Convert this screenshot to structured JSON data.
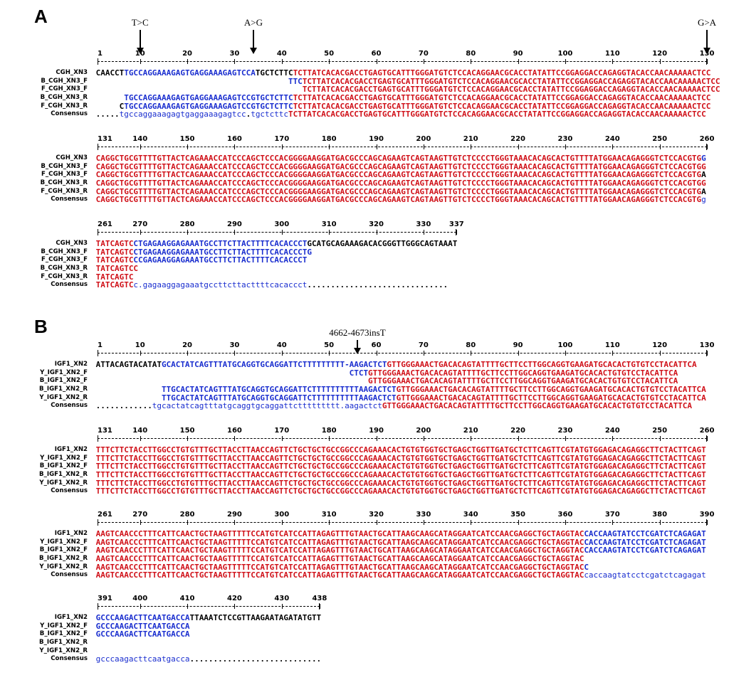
{
  "panels": [
    {
      "label": "A",
      "annotations": [
        {
          "text": "T>C",
          "col": 10
        },
        {
          "text": "A>G",
          "col": 34
        },
        {
          "text": "G>A",
          "col": 130
        }
      ],
      "blocks": [
        {
          "ticks": [
            "1",
            "10",
            "20",
            "30",
            "40",
            "50",
            "60",
            "70",
            "80",
            "90",
            "100",
            "110",
            "120",
            "130"
          ],
          "rows": [
            {
              "name": "CGH_XN3",
              "segs": [
                [
                  "k",
                  "CAACCT"
                ],
                [
                  "b",
                  "TGCCAGGAAAGAGTGAGGAAAGAGTCCA"
                ],
                [
                  "k",
                  "TGCTCTTC"
                ],
                [
                  "r",
                  "TCTTATCACACGACCTGAGTGCATTTGGGATGTCTCCACAGGAACGCACCTATATTCCGGAGGACCAGAGGTACACCAACAAAAACTCC"
                ]
              ]
            },
            {
              "name": "B_CGH_XN3_F",
              "segs": [
                [
                  "k",
                  "                                         "
                ],
                [
                  "b",
                  "TTC"
                ],
                [
                  "r",
                  "TCTTATCACACGACCTGAGTGCATTTGGGATGTCTCCACAGGAACGCACCTATATTCCGGAGGACCAGAGGTACACCAACAAAAACTCC"
                ]
              ]
            },
            {
              "name": "F_CGH_XN3_F",
              "segs": [
                [
                  "k",
                  "                                            "
                ],
                [
                  "r",
                  "TCTTATCACACGACCTGAGTGCATTTGGGATGTCTCCACAGGAACGCACCTATATTCCGGAGGACCAGAGGTACACCAACAAAAACTCC"
                ]
              ]
            },
            {
              "name": "B_CGH_XN3_R",
              "segs": [
                [
                  "k",
                  "      "
                ],
                [
                  "b",
                  "TGCCAGGAAAGAGTGAGGAAAGAGTCCG"
                ],
                [
                  "b",
                  "TGCTCTTC"
                ],
                [
                  "r",
                  "TCTTATCACACGACCTGAGTGCATTTGGGATGTCTCCACAGGAACGCACCTATATTCCGGAGGACCAGAGGTACACCAACAAAAACTCC"
                ]
              ]
            },
            {
              "name": "F_CGH_XN3_R",
              "segs": [
                [
                  "k",
                  "     C"
                ],
                [
                  "b",
                  "TGCCAGGAAAGAGTGAGGAAAGAGTCCG"
                ],
                [
                  "b",
                  "TGCTCTTC"
                ],
                [
                  "r",
                  "TCTTATCACACGACCTGAGTGCATTTGGGATGTCTCCACAGGAACGCACCTATATTCCGGAGGACCAGAGGTACACCAACAAAAACTCC"
                ]
              ]
            },
            {
              "name": "Consensus",
              "segs": [
                [
                  "dots",
                  "....."
                ],
                [
                  "b lc",
                  "tgccaggaaagagtgaggaaagagtcc"
                ],
                [
                  "dots",
                  "."
                ],
                [
                  "b lc",
                  "tgctcttc"
                ],
                [
                  "r",
                  "TCTTATCACACGACCTGAGTGCATTTGGGATGTCTCCACAGGAACGCACCTATATTCCGGAGGACCAGAGGTACACCAACAAAAACTCC"
                ]
              ]
            }
          ]
        },
        {
          "ticks": [
            "131",
            "140",
            "150",
            "160",
            "170",
            "180",
            "190",
            "200",
            "210",
            "220",
            "230",
            "240",
            "250",
            "260"
          ],
          "rows": [
            {
              "name": "CGH_XN3",
              "segs": [
                [
                  "r",
                  "CAGGCTGCGTTTTGTTACTCAGAAACCATCCCAGCTCCCACGGGGAAGGATGACGCCCAGCAGAAGTCAGTAAGTTGTCTCCCCTGGGTAAACACAGCACTGTTTTATGGAACAGAGGGTCTCCACGTG"
                ],
                [
                  "b",
                  "G"
                ]
              ]
            },
            {
              "name": "B_CGH_XN3_F",
              "segs": [
                [
                  "r",
                  "CAGGCTGCGTTTTGTTACTCAGAAACCATCCCAGCTCCCACGGGGAAGGATGACGCCCAGCAGAAGTCAGTAAGTTGTCTCCCCTGGGTAAACACAGCACTGTTTTATGGAACAGAGGGTCTCCACGTG"
                ],
                [
                  "r",
                  "G"
                ]
              ]
            },
            {
              "name": "F_CGH_XN3_F",
              "segs": [
                [
                  "r",
                  "CAGGCTGCGTTTTGTTACTCAGAAACCATCCCAGCTCCCACGGGGAAGGATGACGCCCAGCAGAAGTCAGTAAGTTGTCTCCCCTGGGTAAACACAGCACTGTTTTATGGAACAGAGGGTCTCCACGTG"
                ],
                [
                  "k",
                  "A"
                ]
              ]
            },
            {
              "name": "B_CGH_XN3_R",
              "segs": [
                [
                  "r",
                  "CAGGCTGCGTTTTGTTACTCAGAAACCATCCCAGCTCCCACGGGGAAGGATGACGCCCAGCAGAAGTCAGTAAGTTGTCTCCCCTGGGTAAACACAGCACTGTTTTATGGAACAGAGGGTCTCCACGTG"
                ],
                [
                  "r",
                  "G"
                ]
              ]
            },
            {
              "name": "F_CGH_XN3_R",
              "segs": [
                [
                  "r",
                  "CAGGCTGCGTTTTGTTACTCAGAAACCATCCCAGCTCCCACGGGGAAGGATGACGCCCAGCAGAAGTCAGTAAGTTGTCTCCCCTGGGTAAACACAGCACTGTTTTATGGAACAGAGGGTCTCCACGTG"
                ],
                [
                  "k",
                  "A"
                ]
              ]
            },
            {
              "name": "Consensus",
              "segs": [
                [
                  "r",
                  "CAGGCTGCGTTTTGTTACTCAGAAACCATCCCAGCTCCCACGGGGAAGGATGACGCCCAGCAGAAGTCAGTAAGTTGTCTCCCCTGGGTAAACACAGCACTGTTTTATGGAACAGAGGGTCTCCACGTG"
                ],
                [
                  "b lc",
                  "g"
                ]
              ]
            }
          ]
        },
        {
          "ticks": [
            "261",
            "270",
            "280",
            "290",
            "300",
            "310",
            "320",
            "330",
            "337"
          ],
          "rows": [
            {
              "name": "CGH_XN3",
              "segs": [
                [
                  "r",
                  "TATCAGTC"
                ],
                [
                  "b",
                  "CTGAGAAGGAGAAATGCCTTCTTACTTTTCACACCCT"
                ],
                [
                  "k",
                  "GCATGCAGAAAGACACGGGTTGGGCAGTAAAT"
                ]
              ]
            },
            {
              "name": "B_CGH_XN3_F",
              "segs": [
                [
                  "r",
                  "TATCAGTC"
                ],
                [
                  "b",
                  "CTGAGAAGGAGAAATGCCTTCTTACTTTTCACACCCTG"
                ]
              ]
            },
            {
              "name": "F_CGH_XN3_F",
              "segs": [
                [
                  "r",
                  "TATCAGTC"
                ],
                [
                  "b",
                  "CCGAGAAGGAGAAATGCCTTCTTACTTTTCACACCCT"
                ]
              ]
            },
            {
              "name": "B_CGH_XN3_R",
              "segs": [
                [
                  "r",
                  "TATCAGTCC"
                ]
              ]
            },
            {
              "name": "F_CGH_XN3_R",
              "segs": [
                [
                  "r",
                  "TATCAGTC"
                ]
              ]
            },
            {
              "name": "Consensus",
              "segs": [
                [
                  "r",
                  "TATCAGTC"
                ],
                [
                  "b lc",
                  "c.gagaaggagaaatgccttcttacttttcacaccct"
                ],
                [
                  "dots",
                  ".............................."
                ]
              ]
            }
          ]
        }
      ]
    },
    {
      "label": "B",
      "annotations": [
        {
          "text": "4662-4673insT",
          "col": 56
        }
      ],
      "blocks": [
        {
          "ticks": [
            "1",
            "10",
            "20",
            "30",
            "40",
            "50",
            "60",
            "70",
            "80",
            "90",
            "100",
            "110",
            "120",
            "130"
          ],
          "rows": [
            {
              "name": "IGF1_XN2",
              "segs": [
                [
                  "k",
                  "ATTACAGTACATAT"
                ],
                [
                  "b",
                  "GCACTATCAGTTTATGCAGGTGCAGGATTCTTTTTTTTT-"
                ],
                [
                  "b",
                  "AAGACTCT"
                ],
                [
                  "r",
                  "GTTGGGAAACTGACACAGTATTTTGCTTCCTTGGCAGGTGAAGATGCACACTGTGTCCTACATTCA"
                ]
              ]
            },
            {
              "name": "Y_IGF1_XN2_F",
              "segs": [
                [
                  "k",
                  "                                                      "
                ],
                [
                  "b",
                  "CTCT"
                ],
                [
                  "r",
                  "GTTGGGAAACTGACACAGTATTTTGCTTCCTTGGCAGGTGAAGATGCACACTGTGTCCTACATTCA"
                ]
              ]
            },
            {
              "name": "B_IGF1_XN2_F",
              "segs": [
                [
                  "k",
                  "                                                          "
                ],
                [
                  "r",
                  "GTTGGGAAACTGACACAGTATTTTGCTTCCTTGGCAGGTGAAGATGCACACTGTGTCCTACATTCA"
                ]
              ]
            },
            {
              "name": "B_IGF1_XN2_R",
              "segs": [
                [
                  "k",
                  "              "
                ],
                [
                  "b",
                  "TTGCACTATCAGTTTATGCAGGTGCAGGATTCTTTTTTTTTT"
                ],
                [
                  "b",
                  "AAGACTCT"
                ],
                [
                  "r",
                  "GTTGGGAAACTGACACAGTATTTTGCTTCCTTGGCAGGTGAAGATGCACACTGTGTCCTACATTCA"
                ]
              ]
            },
            {
              "name": "Y_IGF1_XN2_R",
              "segs": [
                [
                  "k",
                  "              "
                ],
                [
                  "b",
                  "TTGCACTATCAGTTTATGCAGGTGCAGGATTCTTTTTTTTTT"
                ],
                [
                  "b",
                  "AAGACTCT"
                ],
                [
                  "r",
                  "GTTGGGAAACTGACACAGTATTTTGCTTCCTTGGCAGGTGAAGATGCACACTGTGTCCTACATTCA"
                ]
              ]
            },
            {
              "name": "Consensus",
              "segs": [
                [
                  "dots",
                  "............"
                ],
                [
                  "b lc",
                  "tgcactatcagtttatgcaggtgcaggattcttttttttt."
                ],
                [
                  "b lc",
                  "aagactct"
                ],
                [
                  "r",
                  "GTTGGGAAACTGACACAGTATTTTGCTTCCTTGGCAGGTGAAGATGCACACTGTGTCCTACATTCA"
                ]
              ]
            }
          ]
        },
        {
          "ticks": [
            "131",
            "140",
            "150",
            "160",
            "170",
            "180",
            "190",
            "200",
            "210",
            "220",
            "230",
            "240",
            "250",
            "260"
          ],
          "rows": [
            {
              "name": "IGF1_XN2",
              "segs": [
                [
                  "r",
                  "TTTCTTCTACCTTGGCCTGTGTTTGCTTACCTTAACCAGTTCTGCTGCTGCCGGCCCAGAAACACTGTGTGGTGCTGAGCTGGTTGATGCTCTTCAGTTCGTATGTGGAGACAGAGGCTTCTACTTCAGT"
                ]
              ]
            },
            {
              "name": "Y_IGF1_XN2_F",
              "segs": [
                [
                  "r",
                  "TTTCTTCTACCTTGGCCTGTGTTTGCTTACCTTAACCAGTTCTGCTGCTGCCGGCCCAGAAACACTGTGTGGTGCTGAGCTGGTTGATGCTCTTCAGTTCGTATGTGGAGACAGAGGCTTCTACTTCAGT"
                ]
              ]
            },
            {
              "name": "B_IGF1_XN2_F",
              "segs": [
                [
                  "r",
                  "TTTCTTCTACCTTGGCCTGTGTTTGCTTACCTTAACCAGTTCTGCTGCTGCCGGCCCAGAAACACTGTGTGGTGCTGAGCTGGTTGATGCTCTTCAGTTCGTATGTGGAGACAGAGGCTTCTACTTCAGT"
                ]
              ]
            },
            {
              "name": "B_IGF1_XN2_R",
              "segs": [
                [
                  "r",
                  "TTTCTTCTACCTTGGCCTGTGTTTGCTTACCTTAACCAGTTCTGCTGCTGCCGGCCCAGAAACACTGTGTGGTGCTGAGCTGGTTGATGCTCTTCAGTTCGTATGTGGAGACAGAGGCTTCTACTTCAGT"
                ]
              ]
            },
            {
              "name": "Y_IGF1_XN2_R",
              "segs": [
                [
                  "r",
                  "TTTCTTCTACCTTGGCCTGTGTTTGCTTACCTTAACCAGTTCTGCTGCTGCCGGCCCAGAAACACTGTGTGGTGCTGAGCTGGTTGATGCTCTTCAGTTCGTATGTGGAGACAGAGGCTTCTACTTCAGT"
                ]
              ]
            },
            {
              "name": "Consensus",
              "segs": [
                [
                  "r",
                  "TTTCTTCTACCTTGGCCTGTGTTTGCTTACCTTAACCAGTTCTGCTGCTGCCGGCCCAGAAACACTGTGTGGTGCTGAGCTGGTTGATGCTCTTCAGTTCGTATGTGGAGACAGAGGCTTCTACTTCAGT"
                ]
              ]
            }
          ]
        },
        {
          "ticks": [
            "261",
            "270",
            "280",
            "290",
            "300",
            "310",
            "320",
            "330",
            "340",
            "350",
            "360",
            "370",
            "380",
            "390"
          ],
          "rows": [
            {
              "name": "IGF1_XN2",
              "segs": [
                [
                  "r",
                  "AAGTCAACCCTTTCATTCAACTGCTAAGTTTTTCCATGTCATCCATTAGAGTTTGTAACTGCATTAAGCAAGCATAGGAATCATCCAACGAGGCTGCTAGGTAC"
                ],
                [
                  "b",
                  "CACCAAGTATCCTCGATCTCAGAGAT"
                ]
              ]
            },
            {
              "name": "Y_IGF1_XN2_F",
              "segs": [
                [
                  "r",
                  "AAGTCAACCCTTTCATTCAACTGCTAAGTTTTTCCATGTCATCCATTAGAGTTTGTAACTGCATTAAGCAAGCATAGGAATCATCCAACGAGGCTGCTAGGTAC"
                ],
                [
                  "b",
                  "CACCAAGTATCCTCGATCTCAGAGAT"
                ]
              ]
            },
            {
              "name": "B_IGF1_XN2_F",
              "segs": [
                [
                  "r",
                  "AAGTCAACCCTTTCATTCAACTGCTAAGTTTTTCCATGTCATCCATTAGAGTTTGTAACTGCATTAAGCAAGCATAGGAATCATCCAACGAGGCTGCTAGGTAC"
                ],
                [
                  "b",
                  "CACCAAGTATCCTCGATCTCAGAGAT"
                ]
              ]
            },
            {
              "name": "B_IGF1_XN2_R",
              "segs": [
                [
                  "r",
                  "AAGTCAACCCTTTCATTCAACTGCTAAGTTTTTCCATGTCATCCATTAGAGTTTGTAACTGCATTAAGCAAGCATAGGAATCATCCAACGAGGCTGCTAGGTAC"
                ]
              ]
            },
            {
              "name": "Y_IGF1_XN2_R",
              "segs": [
                [
                  "r",
                  "AAGTCAACCCTTTCATTCAACTGCTAAGTTTTTCCATGTCATCCATTAGAGTTTGTAACTGCATTAAGCAAGCATAGGAATCATCCAACGAGGCTGCTAGGTAC"
                ],
                [
                  "b",
                  "C"
                ]
              ]
            },
            {
              "name": "Consensus",
              "segs": [
                [
                  "r",
                  "AAGTCAACCCTTTCATTCAACTGCTAAGTTTTTCCATGTCATCCATTAGAGTTTGTAACTGCATTAAGCAAGCATAGGAATCATCCAACGAGGCTGCTAGGTAC"
                ],
                [
                  "b lc",
                  "caccaagtatcctcgatctcagagat"
                ]
              ]
            }
          ]
        },
        {
          "ticks": [
            "391",
            "400",
            "410",
            "420",
            "430",
            "438"
          ],
          "rows": [
            {
              "name": "IGF1_XN2",
              "segs": [
                [
                  "b",
                  "GCCCAAGACTTCAATGACCA"
                ],
                [
                  "k",
                  "TTAAATCTCCGTTAAGAATAGATATGTT"
                ]
              ]
            },
            {
              "name": "Y_IGF1_XN2_F",
              "segs": [
                [
                  "b",
                  "GCCCAAGACTTCAATGACCA"
                ]
              ]
            },
            {
              "name": "B_IGF1_XN2_F",
              "segs": [
                [
                  "b",
                  "GCCCAAGACTTCAATGACCA"
                ]
              ]
            },
            {
              "name": "B_IGF1_XN2_R",
              "segs": []
            },
            {
              "name": "Y_IGF1_XN2_R",
              "segs": []
            },
            {
              "name": "Consensus",
              "segs": [
                [
                  "b lc",
                  "gcccaagacttcaatgacca"
                ],
                [
                  "dots",
                  "............................"
                ]
              ]
            }
          ]
        }
      ]
    }
  ]
}
